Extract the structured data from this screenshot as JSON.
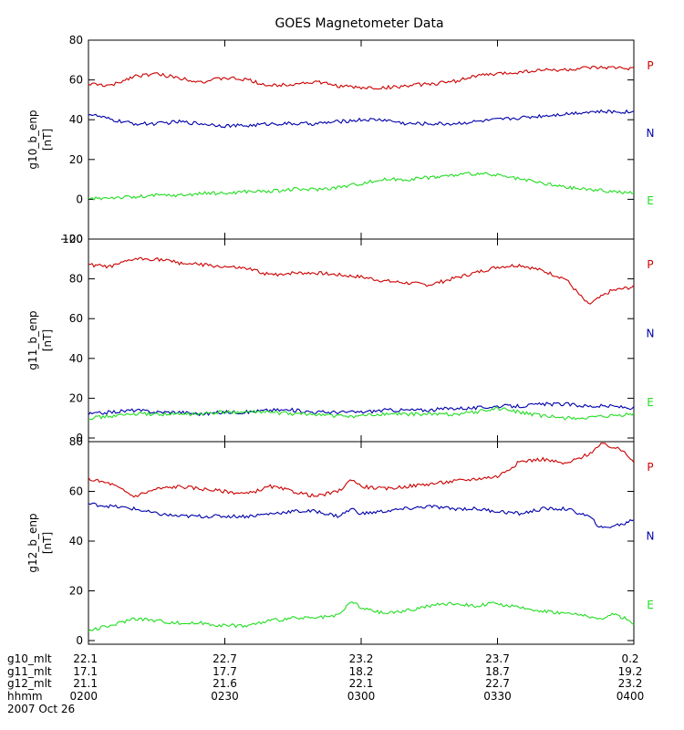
{
  "chart_data": {
    "type": "line",
    "title": "GOES Magnetometer Data",
    "x_range_hhmm": [
      "0200",
      "0400"
    ],
    "x_range_minutes": [
      0,
      120
    ],
    "panels": [
      {
        "ylabel": "g10_b_enp",
        "yunit": "[nT]",
        "ylim": [
          -20,
          80
        ],
        "yticks": [
          -20,
          0,
          20,
          40,
          60,
          80
        ],
        "yticklabels": [
          "−20",
          "0",
          "20",
          "40",
          "60",
          "80"
        ],
        "legend": [
          "P",
          "N",
          "E"
        ],
        "series": [
          {
            "name": "P",
            "color": "#cc0000",
            "x": [
              0,
              5,
              10,
              15,
              20,
              25,
              30,
              35,
              40,
              45,
              50,
              55,
              60,
              65,
              70,
              75,
              80,
              85,
              90,
              95,
              100,
              105,
              110,
              115,
              120
            ],
            "values": [
              58,
              57,
              62,
              63,
              61,
              59,
              61,
              60,
              57,
              58,
              59,
              57,
              56,
              56,
              57,
              58,
              59,
              62,
              63,
              64,
              65,
              65,
              66,
              66,
              66
            ]
          },
          {
            "name": "N",
            "color": "#0000aa",
            "x": [
              0,
              5,
              10,
              15,
              20,
              25,
              30,
              35,
              40,
              45,
              50,
              55,
              60,
              65,
              70,
              75,
              80,
              85,
              90,
              95,
              100,
              105,
              110,
              115,
              120
            ],
            "values": [
              43,
              40,
              38,
              38,
              39,
              38,
              37,
              37,
              38,
              38,
              38,
              39,
              40,
              40,
              38,
              38,
              38,
              39,
              40,
              41,
              42,
              43,
              44,
              44,
              44
            ]
          },
          {
            "name": "E",
            "color": "#22dd22",
            "x": [
              0,
              5,
              10,
              15,
              20,
              25,
              30,
              35,
              40,
              45,
              50,
              55,
              60,
              65,
              70,
              75,
              80,
              85,
              90,
              95,
              100,
              105,
              110,
              115,
              120
            ],
            "values": [
              0,
              1,
              1,
              2,
              2,
              3,
              3,
              4,
              4,
              5,
              5,
              6,
              8,
              10,
              10,
              11,
              12,
              13,
              12,
              10,
              8,
              6,
              5,
              4,
              3
            ]
          }
        ]
      },
      {
        "ylabel": "g11_b_enp",
        "yunit": "[nT]",
        "ylim": [
          0,
          100
        ],
        "yticks": [
          0,
          20,
          40,
          60,
          80,
          100
        ],
        "yticklabels": [
          "0",
          "20",
          "40",
          "60",
          "80",
          "100"
        ],
        "legend": [
          "P",
          "N",
          "E"
        ],
        "series": [
          {
            "name": "P",
            "color": "#cc0000",
            "x": [
              0,
              5,
              10,
              15,
              20,
              25,
              30,
              35,
              40,
              45,
              50,
              55,
              60,
              65,
              70,
              75,
              80,
              85,
              90,
              95,
              100,
              105,
              108,
              110,
              115,
              120
            ],
            "values": [
              87,
              86,
              90,
              90,
              88,
              87,
              86,
              85,
              82,
              83,
              83,
              82,
              81,
              79,
              78,
              77,
              80,
              83,
              86,
              87,
              84,
              80,
              72,
              67,
              74,
              76
            ]
          },
          {
            "name": "N",
            "color": "#0000aa",
            "x": [
              0,
              5,
              10,
              15,
              20,
              25,
              30,
              35,
              40,
              45,
              50,
              55,
              60,
              65,
              70,
              75,
              80,
              85,
              90,
              95,
              100,
              105,
              110,
              115,
              120
            ],
            "values": [
              12,
              13,
              14,
              13,
              13,
              12,
              13,
              13,
              14,
              14,
              13,
              13,
              13,
              14,
              14,
              14,
              15,
              15,
              16,
              16,
              17,
              17,
              16,
              16,
              15
            ]
          },
          {
            "name": "E",
            "color": "#22dd22",
            "x": [
              0,
              5,
              10,
              15,
              20,
              25,
              30,
              35,
              40,
              45,
              50,
              55,
              60,
              65,
              70,
              75,
              80,
              85,
              90,
              95,
              100,
              105,
              110,
              115,
              120
            ],
            "values": [
              10,
              11,
              12,
              12,
              12,
              12,
              13,
              13,
              13,
              12,
              12,
              11,
              11,
              12,
              12,
              12,
              12,
              13,
              15,
              13,
              11,
              10,
              10,
              11,
              12
            ]
          }
        ]
      },
      {
        "ylabel": "g12_b_enp",
        "yunit": "[nT]",
        "ylim": [
          0,
          80
        ],
        "yticks": [
          0,
          20,
          40,
          60,
          80
        ],
        "yticklabels": [
          "0",
          "20",
          "40",
          "60",
          "80"
        ],
        "legend": [
          "P",
          "N",
          "E"
        ],
        "series": [
          {
            "name": "P",
            "color": "#cc0000",
            "x": [
              0,
              5,
              10,
              15,
              20,
              25,
              30,
              35,
              40,
              45,
              50,
              55,
              58,
              60,
              65,
              70,
              75,
              80,
              85,
              90,
              95,
              100,
              105,
              110,
              113,
              115,
              118,
              120
            ],
            "values": [
              65,
              63,
              58,
              61,
              62,
              61,
              60,
              59,
              62,
              60,
              58,
              60,
              65,
              62,
              61,
              62,
              63,
              64,
              65,
              66,
              72,
              73,
              71,
              75,
              79,
              78,
              76,
              72
            ]
          },
          {
            "name": "N",
            "color": "#0000aa",
            "x": [
              0,
              5,
              10,
              15,
              20,
              25,
              30,
              35,
              40,
              45,
              50,
              55,
              58,
              60,
              65,
              70,
              75,
              80,
              85,
              90,
              95,
              100,
              105,
              110,
              113,
              115,
              118,
              120
            ],
            "values": [
              55,
              54,
              53,
              51,
              50,
              50,
              50,
              50,
              51,
              52,
              52,
              50,
              53,
              51,
              52,
              53,
              54,
              53,
              53,
              52,
              51,
              53,
              53,
              50,
              45,
              46,
              47,
              49
            ]
          },
          {
            "name": "E",
            "color": "#22dd22",
            "x": [
              0,
              5,
              10,
              15,
              20,
              25,
              30,
              35,
              40,
              45,
              50,
              55,
              58,
              60,
              65,
              70,
              75,
              80,
              85,
              90,
              95,
              100,
              105,
              110,
              113,
              115,
              118,
              120
            ],
            "values": [
              4,
              6,
              9,
              8,
              7,
              7,
              6,
              6,
              8,
              9,
              9,
              10,
              16,
              13,
              11,
              12,
              14,
              15,
              14,
              15,
              13,
              12,
              11,
              10,
              8,
              11,
              9,
              7
            ]
          }
        ]
      }
    ],
    "x_table": {
      "row_labels": [
        "g10_mlt",
        "g11_mlt",
        "g12_mlt",
        "hhmm"
      ],
      "columns": [
        [
          "22.1",
          "17.1",
          "21.1",
          "0200"
        ],
        [
          "22.7",
          "17.7",
          "21.6",
          "0230"
        ],
        [
          "23.2",
          "18.2",
          "22.1",
          "0300"
        ],
        [
          "23.7",
          "18.7",
          "22.7",
          "0330"
        ],
        [
          "0.2",
          "19.2",
          "23.2",
          "0400"
        ]
      ],
      "date": "2007 Oct 26"
    }
  }
}
